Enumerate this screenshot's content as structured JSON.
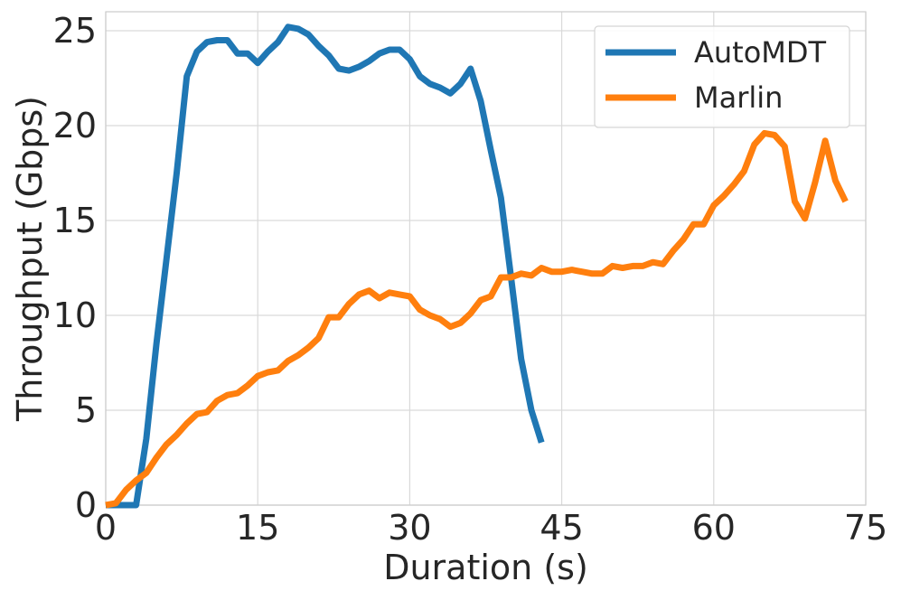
{
  "chart_data": {
    "type": "line",
    "xlabel": "Duration (s)",
    "ylabel": "Throughput (Gbps)",
    "xlim": [
      0,
      75
    ],
    "ylim": [
      0,
      26
    ],
    "xticks": [
      0,
      15,
      30,
      45,
      60,
      75
    ],
    "yticks": [
      0,
      5,
      10,
      15,
      20,
      25
    ],
    "grid": true,
    "legend_position": "top-right",
    "series": [
      {
        "name": "AutoMDT",
        "color": "#1f77b4",
        "x": [
          0,
          3,
          4,
          5,
          6,
          7,
          8,
          9,
          10,
          11,
          12,
          13,
          14,
          15,
          16,
          17,
          18,
          19,
          20,
          21,
          22,
          23,
          24,
          25,
          26,
          27,
          28,
          29,
          30,
          31,
          32,
          33,
          34,
          35,
          36,
          37,
          38,
          39,
          40,
          41,
          42,
          43
        ],
        "y": [
          0,
          0,
          3.5,
          8.5,
          13.0,
          17.5,
          22.6,
          23.9,
          24.4,
          24.5,
          24.5,
          23.8,
          23.8,
          23.3,
          23.9,
          24.4,
          25.2,
          25.1,
          24.8,
          24.2,
          23.7,
          23.0,
          22.9,
          23.1,
          23.4,
          23.8,
          24.0,
          24.0,
          23.5,
          22.6,
          22.2,
          22.0,
          21.7,
          22.2,
          23.0,
          21.3,
          18.7,
          16.2,
          12.0,
          7.7,
          5.0,
          3.3
        ]
      },
      {
        "name": "Marlin",
        "color": "#ff7f0e",
        "x": [
          0,
          1,
          2,
          3,
          4,
          5,
          6,
          7,
          8,
          9,
          10,
          11,
          12,
          13,
          14,
          15,
          16,
          17,
          18,
          19,
          20,
          21,
          22,
          23,
          24,
          25,
          26,
          27,
          28,
          29,
          30,
          31,
          32,
          33,
          34,
          35,
          36,
          37,
          38,
          39,
          40,
          41,
          42,
          43,
          44,
          45,
          46,
          47,
          48,
          49,
          50,
          51,
          52,
          53,
          54,
          55,
          56,
          57,
          58,
          59,
          60,
          61,
          62,
          63,
          64,
          65,
          66,
          67,
          68,
          69,
          70,
          71,
          72,
          73
        ],
        "y": [
          0,
          0.1,
          0.8,
          1.3,
          1.7,
          2.5,
          3.2,
          3.7,
          4.3,
          4.8,
          4.9,
          5.5,
          5.8,
          5.9,
          6.3,
          6.8,
          7.0,
          7.1,
          7.6,
          7.9,
          8.3,
          8.8,
          9.9,
          9.9,
          10.6,
          11.1,
          11.3,
          10.9,
          11.2,
          11.1,
          11.0,
          10.3,
          10.0,
          9.8,
          9.4,
          9.6,
          10.1,
          10.8,
          11.0,
          12.0,
          12.0,
          12.2,
          12.1,
          12.5,
          12.3,
          12.3,
          12.4,
          12.3,
          12.2,
          12.2,
          12.6,
          12.5,
          12.6,
          12.6,
          12.8,
          12.7,
          13.4,
          14.0,
          14.8,
          14.8,
          15.8,
          16.3,
          16.9,
          17.6,
          19.0,
          19.6,
          19.5,
          18.9,
          16.0,
          15.1,
          17.0,
          19.2,
          17.1,
          16.0
        ]
      }
    ]
  }
}
